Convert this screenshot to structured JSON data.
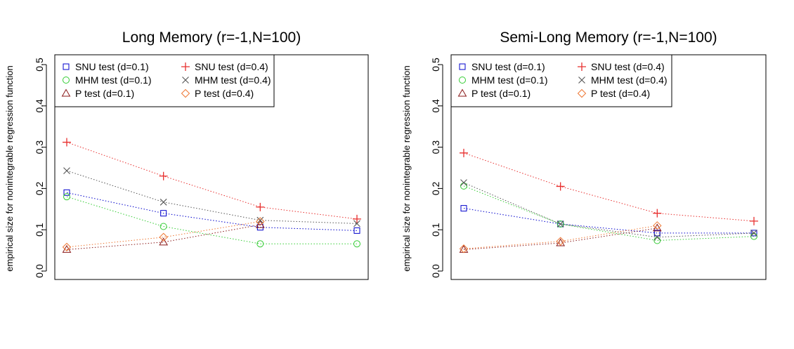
{
  "figure": {
    "background": "#ffffff"
  },
  "series_styles": {
    "snu01": {
      "color": "#0000cc",
      "marker": "square"
    },
    "mhm01": {
      "color": "#33cc33",
      "marker": "circle"
    },
    "p01": {
      "color": "#8b1a1a",
      "marker": "triangle"
    },
    "snu04": {
      "color": "#e8302f",
      "marker": "plus"
    },
    "mhm04": {
      "color": "#555555",
      "marker": "cross"
    },
    "p04": {
      "color": "#ee7733",
      "marker": "diamond"
    }
  },
  "chart_data": [
    {
      "type": "line",
      "title": "Long Memory (r=-1,N=100)",
      "xlabel": "",
      "ylabel": "empirical size for nonintegrable regression function",
      "ylim": [
        0.0,
        0.5
      ],
      "xlim": [
        1,
        4
      ],
      "yticks": [
        "0.0",
        "0.1",
        "0.2",
        "0.3",
        "0.4",
        "0.5"
      ],
      "x": [
        1,
        2,
        3,
        4
      ],
      "grid": false,
      "legend_position": "top-left",
      "series": [
        {
          "key": "snu01",
          "name": "SNU test (d=0.1)",
          "values": [
            0.19,
            0.14,
            0.106,
            0.098
          ]
        },
        {
          "key": "mhm01",
          "name": "MHM test (d=0.1)",
          "values": [
            0.18,
            0.108,
            0.066,
            0.066
          ]
        },
        {
          "key": "p01",
          "name": "P test (d=0.1)",
          "values": [
            0.052,
            0.07,
            0.112,
            null
          ]
        },
        {
          "key": "snu04",
          "name": "SNU test (d=0.4)",
          "values": [
            0.312,
            0.23,
            0.155,
            0.126
          ]
        },
        {
          "key": "mhm04",
          "name": "MHM test (d=0.4)",
          "values": [
            0.243,
            0.167,
            0.123,
            0.115
          ]
        },
        {
          "key": "p04",
          "name": "P test (d=0.4)",
          "values": [
            0.058,
            0.082,
            0.12,
            null
          ]
        }
      ]
    },
    {
      "type": "line",
      "title": "Semi-Long Memory (r=-1,N=100)",
      "xlabel": "",
      "ylabel": "empirical size for nonintegrable regression function",
      "ylim": [
        0.0,
        0.5
      ],
      "xlim": [
        1,
        4
      ],
      "yticks": [
        "0.0",
        "0.1",
        "0.2",
        "0.3",
        "0.4",
        "0.5"
      ],
      "x": [
        1,
        2,
        3,
        4
      ],
      "grid": false,
      "legend_position": "top-left",
      "series": [
        {
          "key": "snu01",
          "name": "SNU test (d=0.1)",
          "values": [
            0.152,
            0.114,
            0.092,
            0.092
          ]
        },
        {
          "key": "mhm01",
          "name": "MHM test (d=0.1)",
          "values": [
            0.206,
            0.114,
            0.074,
            0.084
          ]
        },
        {
          "key": "p01",
          "name": "P test (d=0.1)",
          "values": [
            0.052,
            0.068,
            0.104,
            null
          ]
        },
        {
          "key": "snu04",
          "name": "SNU test (d=0.4)",
          "values": [
            0.286,
            0.205,
            0.14,
            0.121
          ]
        },
        {
          "key": "mhm04",
          "name": "MHM test (d=0.4)",
          "values": [
            0.214,
            0.114,
            0.082,
            0.092
          ]
        },
        {
          "key": "p04",
          "name": "P test (d=0.4)",
          "values": [
            0.054,
            0.072,
            0.11,
            null
          ]
        }
      ]
    }
  ]
}
